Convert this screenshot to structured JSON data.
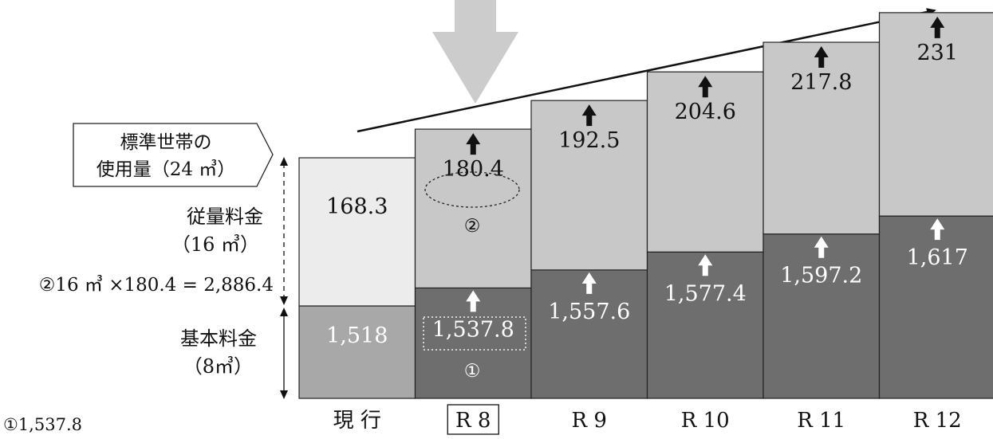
{
  "chart_data": {
    "type": "bar",
    "stacked": true,
    "categories": [
      "現 行",
      "R 8",
      "R 9",
      "R 10",
      "R 11",
      "R 12"
    ],
    "highlighted_category": "R 8",
    "series": [
      {
        "name": "基本料金",
        "values": [
          1518,
          1537.8,
          1557.6,
          1577.4,
          1597.2,
          1617
        ]
      },
      {
        "name": "従量料金",
        "values": [
          168.3,
          180.4,
          192.5,
          204.6,
          217.8,
          231
        ]
      }
    ],
    "base_labels": [
      "1,518",
      "1,537.8",
      "1,557.6",
      "1,577.4",
      "1,597.2",
      "1,617"
    ],
    "top_labels": [
      "168.3",
      "180.4",
      "192.5",
      "204.6",
      "217.8",
      "231"
    ],
    "colors": {
      "base_current": "#a8a8a8",
      "base": "#6e6e6e",
      "top_current": "#ececec",
      "top": "#c8c8c8",
      "down_arrow": "#cccccc"
    }
  },
  "callout": {
    "line1": "標準世帯の",
    "line2": "使用量（24 ㎥）"
  },
  "usage_label": {
    "line1": "従量料金",
    "line2": "（16 ㎥）"
  },
  "formula2": "②16 ㎥ ×180.4 = 2,886.4",
  "base_label": {
    "line1": "基本料金",
    "line2": "（8㎥）"
  },
  "formula1": "①1,537.8",
  "circle_marks": {
    "one": "①",
    "two": "②"
  }
}
